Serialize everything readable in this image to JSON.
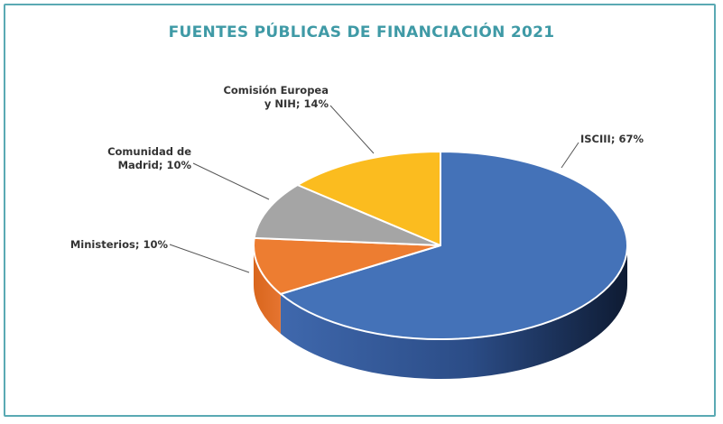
{
  "chart_data": {
    "type": "pie",
    "title": "FUENTES PÚBLICAS DE FINANCIACIÓN 2021",
    "slices": [
      {
        "name": "ISCIII",
        "value": 67,
        "label_lines": [
          "ISCIII; 67%"
        ],
        "color": "#4472b8"
      },
      {
        "name": "Ministerios",
        "value": 10,
        "label_lines": [
          "Ministerios; 10%"
        ],
        "color": "#ed7d31"
      },
      {
        "name": "Comunidad de Madrid",
        "value": 10,
        "label_lines": [
          "Comunidad de",
          "Madrid; 10%"
        ],
        "color": "#a5a5a5"
      },
      {
        "name": "Comisión Europea y NIH",
        "value": 14,
        "label_lines": [
          "Comisión Europea",
          "y NIH; 14%"
        ],
        "color": "#fbbc1f"
      }
    ]
  },
  "colors": {
    "title": "#3f9aa6",
    "frame": "#5aa9b3",
    "leader": "#555555"
  }
}
